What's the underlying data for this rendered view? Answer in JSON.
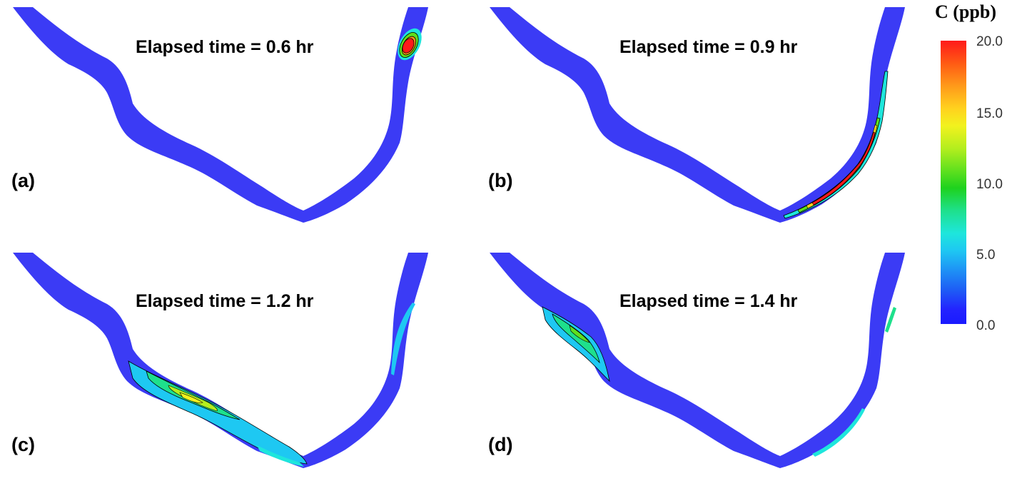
{
  "panels": [
    {
      "letter": "(a)",
      "time_label": "Elapsed time = 0.6 hr"
    },
    {
      "letter": "(b)",
      "time_label": "Elapsed time = 0.9 hr"
    },
    {
      "letter": "(c)",
      "time_label": "Elapsed time = 1.2 hr"
    },
    {
      "letter": "(d)",
      "time_label": "Elapsed time = 1.4 hr"
    }
  ],
  "colorbar": {
    "title": "C (ppb)",
    "ticks": [
      "20.0",
      "15.0",
      "10.0",
      "5.0",
      "0.0"
    ],
    "range": [
      0.0,
      20.0
    ]
  },
  "colors": {
    "river": "#3b3bf5",
    "high": "#ff1a1a",
    "mid": "#1ed21e",
    "low": "#1ee6dc"
  }
}
